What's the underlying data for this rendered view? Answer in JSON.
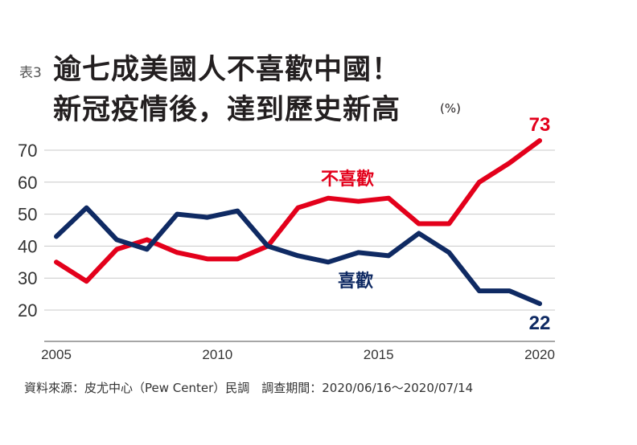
{
  "chart_data": {
    "type": "line",
    "title_tag": "表3",
    "title_line1": "逾七成美國人不喜歡中國！",
    "title_line2": "新冠疫情後，達到歷史新高",
    "unit": "(%)",
    "x_range": [
      2005,
      2020
    ],
    "x_ticks": [
      "2005",
      "2010",
      "2015",
      "2020"
    ],
    "y_ticks": [
      "20",
      "30",
      "40",
      "50",
      "60",
      "70"
    ],
    "ylim": [
      10,
      75
    ],
    "grid": true,
    "series": [
      {
        "name": "不喜歡",
        "color": "#e3001b",
        "values": [
          35,
          29,
          39,
          42,
          38,
          36,
          36,
          40,
          52,
          55,
          54,
          55,
          47,
          47,
          60,
          66,
          73
        ],
        "end_label": "73"
      },
      {
        "name": "喜歡",
        "color": "#0f2a63",
        "values": [
          43,
          52,
          42,
          39,
          50,
          49,
          51,
          40,
          37,
          35,
          38,
          37,
          44,
          38,
          26,
          26,
          22
        ],
        "end_label": "22"
      }
    ]
  },
  "footnote": "資料來源：皮尤中心（Pew Center）民調　調查期間：2020/06/16～2020/07/14"
}
